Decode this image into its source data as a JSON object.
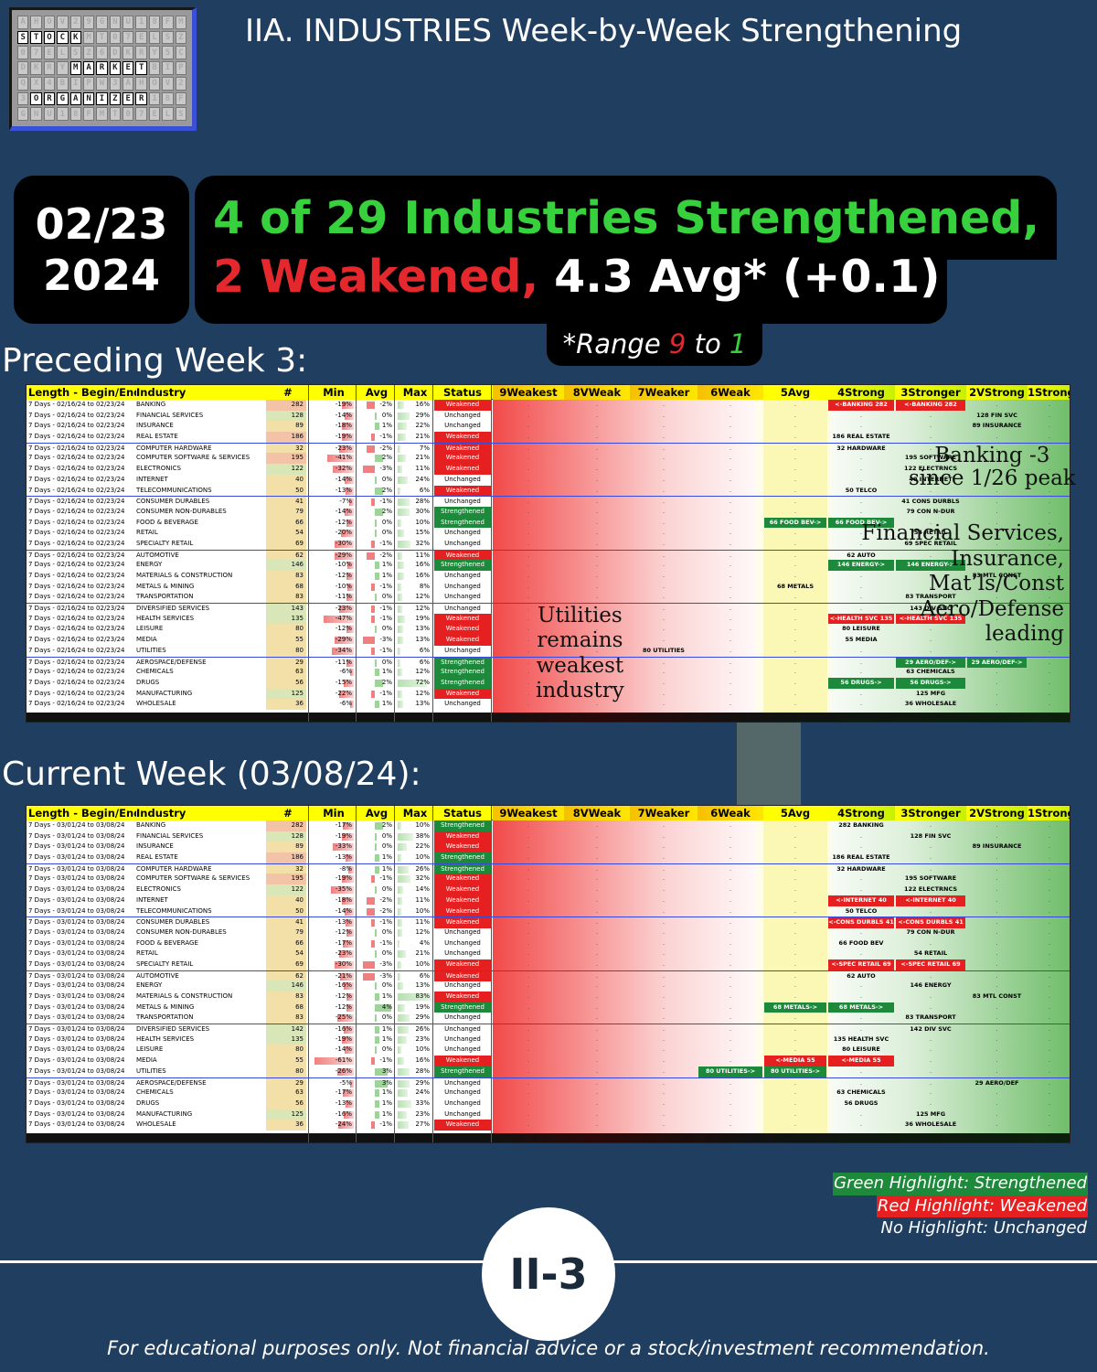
{
  "logo": {
    "row1": "STOCK",
    "row2": "MARKET",
    "row3": "ORGANIZER"
  },
  "title": "IIA. INDUSTRIES Week-by-Week Strengthening",
  "date": {
    "line1": "02/23",
    "line2": "2024"
  },
  "headline": {
    "line1": "4 of 29 Industries Strengthened,",
    "line2_red": "2 Weakened,",
    "line2_white": "4.3 Avg* (+0.1)"
  },
  "range_note": {
    "prefix": "*Range ",
    "low": "9",
    "mid": " to ",
    "high": "1"
  },
  "sections": {
    "preceding": "Preceding Week 3:",
    "current": "Current Week (03/08/24):"
  },
  "columns": [
    "Length - Begin/End",
    "Industry",
    "#",
    "Min",
    "Avg",
    "Max",
    "Status",
    "9Weakest",
    "8VWeak",
    "7Weaker",
    "6Weak",
    "5Avg",
    "4Strong",
    "3Stronger",
    "2VStrong",
    "1Strongest"
  ],
  "tables": {
    "preceding": {
      "range": "7 Days - 02/16/24 to 02/23/24",
      "rows": [
        [
          "BANKING",
          282,
          "-19%",
          "-2%",
          "16%",
          "Weakened",
          -19,
          -2,
          16
        ],
        [
          "FINANCIAL SERVICES",
          128,
          "-14%",
          "0%",
          "29%",
          "Unchanged",
          -14,
          0,
          29
        ],
        [
          "INSURANCE",
          89,
          "-18%",
          "1%",
          "22%",
          "Unchanged",
          -18,
          1,
          22
        ],
        [
          "REAL ESTATE",
          186,
          "-19%",
          "-1%",
          "21%",
          "Weakened",
          -19,
          -1,
          21
        ],
        [
          "COMPUTER HARDWARE",
          32,
          "-23%",
          "-2%",
          "7%",
          "Weakened",
          -23,
          -2,
          7
        ],
        [
          "COMPUTER SOFTWARE & SERVICES",
          195,
          "-41%",
          "2%",
          "21%",
          "Weakened",
          -41,
          2,
          21
        ],
        [
          "ELECTRONICS",
          122,
          "-32%",
          "-3%",
          "11%",
          "Weakened",
          -32,
          -3,
          11
        ],
        [
          "INTERNET",
          40,
          "-14%",
          "0%",
          "24%",
          "Unchanged",
          -14,
          0,
          24
        ],
        [
          "TELECOMMUNICATIONS",
          50,
          "-13%",
          "2%",
          "6%",
          "Weakened",
          -13,
          2,
          6
        ],
        [
          "CONSUMER DURABLES",
          41,
          "-7%",
          "-1%",
          "28%",
          "Unchanged",
          -7,
          -1,
          28
        ],
        [
          "CONSUMER NON-DURABLES",
          79,
          "-14%",
          "2%",
          "30%",
          "Strengthened",
          -14,
          2,
          30
        ],
        [
          "FOOD & BEVERAGE",
          66,
          "-12%",
          "0%",
          "10%",
          "Strengthened",
          -12,
          0,
          10
        ],
        [
          "RETAIL",
          54,
          "-20%",
          "0%",
          "15%",
          "Unchanged",
          -20,
          0,
          15
        ],
        [
          "SPECIALTY RETAIL",
          69,
          "-30%",
          "-1%",
          "32%",
          "Unchanged",
          -30,
          -1,
          32
        ],
        [
          "AUTOMOTIVE",
          62,
          "-29%",
          "-2%",
          "11%",
          "Weakened",
          -29,
          -2,
          11
        ],
        [
          "ENERGY",
          146,
          "-10%",
          "1%",
          "16%",
          "Strengthened",
          -10,
          1,
          16
        ],
        [
          "MATERIALS & CONSTRUCTION",
          83,
          "-12%",
          "1%",
          "16%",
          "Unchanged",
          -12,
          1,
          16
        ],
        [
          "METALS & MINING",
          68,
          "-10%",
          "-1%",
          "8%",
          "Unchanged",
          -10,
          -1,
          8
        ],
        [
          "TRANSPORTATION",
          83,
          "-11%",
          "0%",
          "12%",
          "Unchanged",
          -11,
          0,
          12
        ],
        [
          "DIVERSIFIED SERVICES",
          143,
          "-23%",
          "-1%",
          "12%",
          "Unchanged",
          -23,
          -1,
          12
        ],
        [
          "HEALTH SERVICES",
          135,
          "-47%",
          "-1%",
          "19%",
          "Weakened",
          -47,
          -1,
          19
        ],
        [
          "LEISURE",
          80,
          "-12%",
          "0%",
          "13%",
          "Weakened",
          -12,
          0,
          13
        ],
        [
          "MEDIA",
          55,
          "-29%",
          "-3%",
          "13%",
          "Weakened",
          -29,
          -3,
          13
        ],
        [
          "UTILITIES",
          80,
          "-34%",
          "-1%",
          "6%",
          "Unchanged",
          -34,
          -1,
          6
        ],
        [
          "AEROSPACE/DEFENSE",
          29,
          "-11%",
          "0%",
          "6%",
          "Strengthened",
          -11,
          0,
          6
        ],
        [
          "CHEMICALS",
          63,
          "-6%",
          "1%",
          "12%",
          "Strengthened",
          -6,
          1,
          12
        ],
        [
          "DRUGS",
          56,
          "-15%",
          "2%",
          "72%",
          "Strengthened",
          -15,
          2,
          72
        ],
        [
          "MANUFACTURING",
          125,
          "-22%",
          "-1%",
          "12%",
          "Weakened",
          -22,
          -1,
          12
        ],
        [
          "WHOLESALE",
          36,
          "-6%",
          "1%",
          "13%",
          "Unchanged",
          -6,
          1,
          13
        ]
      ],
      "pills": [
        [
          0,
          5,
          "<-BANKING 282",
          "r"
        ],
        [
          0,
          6,
          "<-BANKING 282",
          "r"
        ],
        [
          1,
          7,
          "128 FIN SVC",
          "n"
        ],
        [
          2,
          7,
          "89 INSURANCE",
          "n"
        ],
        [
          3,
          5,
          "186 REAL ESTATE",
          "n"
        ],
        [
          4,
          5,
          "32 HARDWARE",
          "n"
        ],
        [
          5,
          6,
          "195 SOFTWARE",
          "n"
        ],
        [
          6,
          6,
          "122 ELECTRNCS",
          "n"
        ],
        [
          7,
          6,
          "40 INTERNET",
          "n"
        ],
        [
          8,
          5,
          "50 TELCO",
          "n"
        ],
        [
          9,
          6,
          "41 CONS DURBLS",
          "n"
        ],
        [
          10,
          6,
          "79 CON N-DUR",
          "n"
        ],
        [
          11,
          4,
          "66 FOOD BEV->",
          "g"
        ],
        [
          11,
          5,
          "66 FOOD BEV->",
          "g"
        ],
        [
          12,
          6,
          "54 RETAIL",
          "n"
        ],
        [
          13,
          6,
          "69 SPEC RETAIL",
          "n"
        ],
        [
          14,
          5,
          "62 AUTO",
          "n"
        ],
        [
          15,
          5,
          "146 ENERGY->",
          "g"
        ],
        [
          15,
          6,
          "146 ENERGY->",
          "g"
        ],
        [
          16,
          7,
          "83 MTL CONST",
          "n"
        ],
        [
          17,
          4,
          "68 METALS",
          "n"
        ],
        [
          18,
          6,
          "83 TRANSPORT",
          "n"
        ],
        [
          19,
          6,
          "143 DIV SVC",
          "n"
        ],
        [
          20,
          5,
          "<-HEALTH SVC 135",
          "r"
        ],
        [
          20,
          6,
          "<-HEALTH SVC 135",
          "r"
        ],
        [
          21,
          5,
          "80 LEISURE",
          "n"
        ],
        [
          22,
          5,
          "55 MEDIA",
          "n"
        ],
        [
          23,
          2,
          "80 UTILITIES",
          "n"
        ],
        [
          24,
          6,
          "29 AERO/DEF->",
          "g"
        ],
        [
          24,
          7,
          "29 AERO/DEF->",
          "g"
        ],
        [
          25,
          6,
          "63 CHEMICALS",
          "n"
        ],
        [
          26,
          5,
          "56 DRUGS->",
          "g"
        ],
        [
          26,
          6,
          "56 DRUGS->",
          "g"
        ],
        [
          27,
          6,
          "125 MFG",
          "n"
        ],
        [
          28,
          6,
          "36 WHOLESALE",
          "n"
        ]
      ]
    },
    "current": {
      "range": "7 Days - 03/01/24 to 03/08/24",
      "rows": [
        [
          "BANKING",
          282,
          "-17%",
          "2%",
          "10%",
          "Strengthened",
          -17,
          2,
          10
        ],
        [
          "FINANCIAL SERVICES",
          128,
          "-19%",
          "0%",
          "38%",
          "Weakened",
          -19,
          0,
          38
        ],
        [
          "INSURANCE",
          89,
          "-33%",
          "0%",
          "22%",
          "Weakened",
          -33,
          0,
          22
        ],
        [
          "REAL ESTATE",
          186,
          "-13%",
          "1%",
          "10%",
          "Strengthened",
          -13,
          1,
          10
        ],
        [
          "COMPUTER HARDWARE",
          32,
          "-8%",
          "1%",
          "26%",
          "Strengthened",
          -8,
          1,
          26
        ],
        [
          "COMPUTER SOFTWARE & SERVICES",
          195,
          "-19%",
          "-1%",
          "32%",
          "Weakened",
          -19,
          -1,
          32
        ],
        [
          "ELECTRONICS",
          122,
          "-35%",
          "0%",
          "14%",
          "Weakened",
          -35,
          0,
          14
        ],
        [
          "INTERNET",
          40,
          "-18%",
          "-2%",
          "11%",
          "Weakened",
          -18,
          -2,
          11
        ],
        [
          "TELECOMMUNICATIONS",
          50,
          "-14%",
          "-2%",
          "10%",
          "Weakened",
          -14,
          -2,
          10
        ],
        [
          "CONSUMER DURABLES",
          41,
          "-13%",
          "-1%",
          "11%",
          "Weakened",
          -13,
          -1,
          11
        ],
        [
          "CONSUMER NON-DURABLES",
          79,
          "-12%",
          "0%",
          "12%",
          "Unchanged",
          -12,
          0,
          12
        ],
        [
          "FOOD & BEVERAGE",
          66,
          "-17%",
          "-1%",
          "4%",
          "Unchanged",
          -17,
          -1,
          4
        ],
        [
          "RETAIL",
          54,
          "-23%",
          "0%",
          "21%",
          "Unchanged",
          -23,
          0,
          21
        ],
        [
          "SPECIALTY RETAIL",
          69,
          "-30%",
          "-3%",
          "10%",
          "Weakened",
          -30,
          -3,
          10
        ],
        [
          "AUTOMOTIVE",
          62,
          "-21%",
          "-3%",
          "6%",
          "Weakened",
          -21,
          -3,
          6
        ],
        [
          "ENERGY",
          146,
          "-16%",
          "0%",
          "13%",
          "Unchanged",
          -16,
          0,
          13
        ],
        [
          "MATERIALS & CONSTRUCTION",
          83,
          "-12%",
          "1%",
          "83%",
          "Weakened",
          -12,
          1,
          83
        ],
        [
          "METALS & MINING",
          68,
          "-12%",
          "4%",
          "19%",
          "Strengthened",
          -12,
          4,
          19
        ],
        [
          "TRANSPORTATION",
          83,
          "-25%",
          "0%",
          "29%",
          "Unchanged",
          -25,
          0,
          29
        ],
        [
          "DIVERSIFIED SERVICES",
          142,
          "-16%",
          "1%",
          "26%",
          "Unchanged",
          -16,
          1,
          26
        ],
        [
          "HEALTH SERVICES",
          135,
          "-19%",
          "1%",
          "23%",
          "Unchanged",
          -19,
          1,
          23
        ],
        [
          "LEISURE",
          80,
          "-14%",
          "0%",
          "10%",
          "Unchanged",
          -14,
          0,
          10
        ],
        [
          "MEDIA",
          55,
          "-61%",
          "-1%",
          "16%",
          "Weakened",
          -61,
          -1,
          16
        ],
        [
          "UTILITIES",
          80,
          "-26%",
          "3%",
          "28%",
          "Strengthened",
          -26,
          3,
          28
        ],
        [
          "AEROSPACE/DEFENSE",
          29,
          "-5%",
          "3%",
          "29%",
          "Unchanged",
          -5,
          3,
          29
        ],
        [
          "CHEMICALS",
          63,
          "-17%",
          "1%",
          "24%",
          "Unchanged",
          -17,
          1,
          24
        ],
        [
          "DRUGS",
          56,
          "-13%",
          "1%",
          "33%",
          "Unchanged",
          -13,
          1,
          33
        ],
        [
          "MANUFACTURING",
          125,
          "-16%",
          "1%",
          "23%",
          "Unchanged",
          -16,
          1,
          23
        ],
        [
          "WHOLESALE",
          36,
          "-24%",
          "-1%",
          "27%",
          "Weakened",
          -24,
          -1,
          27
        ]
      ],
      "pills": [
        [
          0,
          5,
          "282 BANKING",
          "n"
        ],
        [
          1,
          6,
          "128 FIN SVC",
          "n"
        ],
        [
          2,
          7,
          "89 INSURANCE",
          "n"
        ],
        [
          3,
          5,
          "186 REAL ESTATE",
          "n"
        ],
        [
          4,
          5,
          "32 HARDWARE",
          "n"
        ],
        [
          5,
          6,
          "195 SOFTWARE",
          "n"
        ],
        [
          6,
          6,
          "122 ELECTRNCS",
          "n"
        ],
        [
          7,
          5,
          "<-INTERNET 40",
          "r"
        ],
        [
          7,
          6,
          "<-INTERNET 40",
          "r"
        ],
        [
          8,
          5,
          "50 TELCO",
          "n"
        ],
        [
          9,
          5,
          "<-CONS DURBLS 41",
          "r"
        ],
        [
          9,
          6,
          "<-CONS DURBLS 41",
          "r"
        ],
        [
          10,
          6,
          "79 CON N-DUR",
          "n"
        ],
        [
          11,
          5,
          "66 FOOD BEV",
          "n"
        ],
        [
          12,
          6,
          "54 RETAIL",
          "n"
        ],
        [
          13,
          5,
          "<-SPEC RETAIL 69",
          "r"
        ],
        [
          13,
          6,
          "<-SPEC RETAIL 69",
          "r"
        ],
        [
          14,
          5,
          "62 AUTO",
          "n"
        ],
        [
          15,
          6,
          "146 ENERGY",
          "n"
        ],
        [
          16,
          7,
          "83 MTL CONST",
          "n"
        ],
        [
          17,
          4,
          "68 METALS->",
          "g"
        ],
        [
          17,
          5,
          "68 METALS->",
          "g"
        ],
        [
          18,
          6,
          "83 TRANSPORT",
          "n"
        ],
        [
          19,
          6,
          "142 DIV SVC",
          "n"
        ],
        [
          20,
          5,
          "135 HEALTH SVC",
          "n"
        ],
        [
          21,
          5,
          "80 LEISURE",
          "n"
        ],
        [
          22,
          4,
          "<-MEDIA 55",
          "r"
        ],
        [
          22,
          5,
          "<-MEDIA 55",
          "r"
        ],
        [
          23,
          3,
          "80 UTILITIES->",
          "g"
        ],
        [
          23,
          4,
          "80 UTILITIES->",
          "g"
        ],
        [
          24,
          7,
          "29 AERO/DEF",
          "n"
        ],
        [
          25,
          5,
          "63 CHEMICALS",
          "n"
        ],
        [
          26,
          5,
          "56 DRUGS",
          "n"
        ],
        [
          27,
          6,
          "125 MFG",
          "n"
        ],
        [
          28,
          6,
          "36 WHOLESALE",
          "n"
        ]
      ]
    }
  },
  "annotations": {
    "banking": [
      "Banking -3",
      "since 1/26 peak"
    ],
    "leaders": [
      "Financial Services,",
      "Insurance,",
      "Mat’ls/Const",
      "Aero/Defense",
      "leading"
    ],
    "utilities": [
      "Utilities",
      "remains",
      "weakest",
      "industry"
    ]
  },
  "legend": {
    "green": "Green Highlight: Strengthened",
    "red": "Red Highlight: Weakened",
    "none": "No Highlight: Unchanged"
  },
  "code": "II-3",
  "disclaimer": "For educational purposes only. Not financial advice or a stock/investment recommendation.",
  "colors": {
    "background": "#203f60",
    "strengthened": "#1c8a3a",
    "weakened": "#e62020",
    "headline_green": "#36d13c",
    "headline_red": "#e4282d",
    "header_yellow": "#ffff00"
  }
}
